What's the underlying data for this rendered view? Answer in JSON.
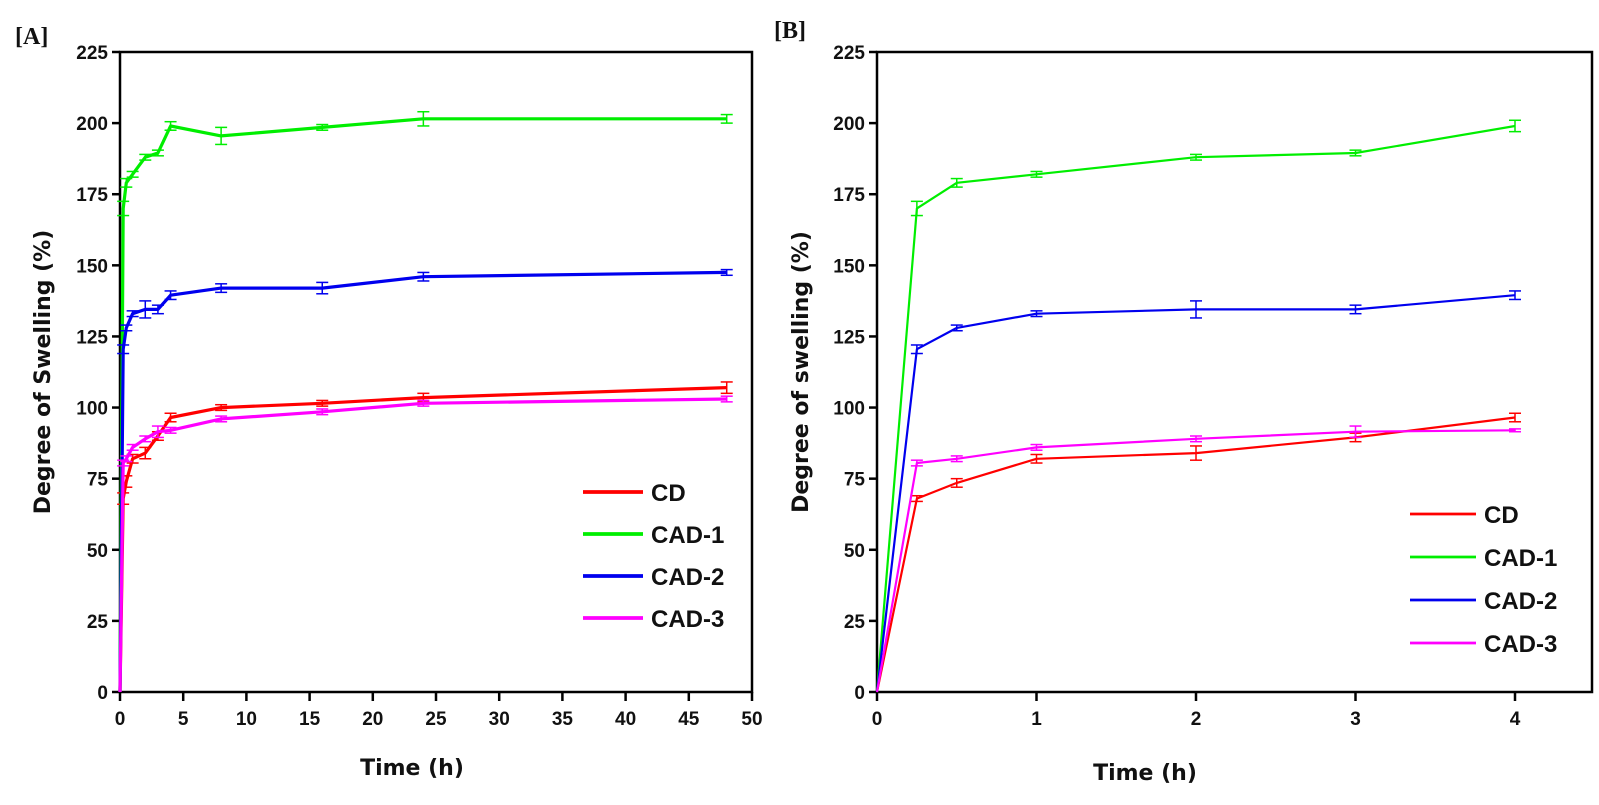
{
  "chart_data": [
    {
      "type": "line",
      "panel_label": "[A]",
      "title": "",
      "xlabel": "Time (h)",
      "ylabel": "Degree of Swelling (%)",
      "xlim": [
        0,
        50
      ],
      "ylim": [
        0,
        225
      ],
      "xticks": [
        0,
        5,
        10,
        15,
        20,
        25,
        30,
        35,
        40,
        45,
        50
      ],
      "yticks": [
        0,
        25,
        50,
        75,
        100,
        125,
        150,
        175,
        200,
        225
      ],
      "grid": false,
      "legend_position": "bottom-right",
      "error_bars": true,
      "series": [
        {
          "name": "CD",
          "color": "#ff0000",
          "x": [
            0,
            0.25,
            0.5,
            1,
            2,
            3,
            4,
            8,
            16,
            24,
            48
          ],
          "y": [
            0,
            68,
            74,
            82,
            84,
            90,
            96.5,
            100,
            101.5,
            103.5,
            107
          ],
          "err": [
            0,
            2,
            2,
            1.5,
            2,
            1.5,
            1.5,
            1,
            1,
            1.5,
            2
          ]
        },
        {
          "name": "CAD-1",
          "color": "#00ee00",
          "x": [
            0,
            0.25,
            0.5,
            1,
            2,
            3,
            4,
            8,
            16,
            24,
            48
          ],
          "y": [
            0,
            170,
            179,
            182,
            188,
            189.5,
            199,
            195.5,
            198.5,
            201.5,
            201.5
          ],
          "err": [
            0,
            2.5,
            1.5,
            1,
            1,
            1,
            1.5,
            3,
            1,
            2.5,
            1.5
          ]
        },
        {
          "name": "CAD-2",
          "color": "#0000ee",
          "x": [
            0,
            0.25,
            0.5,
            1,
            2,
            3,
            4,
            8,
            16,
            24,
            48
          ],
          "y": [
            0,
            120.5,
            128,
            133,
            134.5,
            134.5,
            139.5,
            142,
            142,
            146,
            147.5
          ],
          "err": [
            0,
            1.5,
            1,
            1,
            3,
            1.5,
            1.5,
            1.5,
            2,
            1.5,
            1
          ]
        },
        {
          "name": "CAD-3",
          "color": "#ff00ff",
          "x": [
            0,
            0.25,
            0.5,
            1,
            2,
            3,
            4,
            8,
            16,
            24,
            48
          ],
          "y": [
            0,
            80.5,
            82,
            86,
            89,
            91.5,
            92,
            96,
            98.5,
            101.5,
            103
          ],
          "err": [
            0,
            1,
            1,
            1,
            1,
            2,
            1,
            1,
            1,
            1,
            1
          ]
        }
      ]
    },
    {
      "type": "line",
      "panel_label": "[B]",
      "title": "",
      "xlabel": "Time (h)",
      "ylabel": "Degree of swelling (%)",
      "xlim": [
        0,
        4.5
      ],
      "ylim": [
        0,
        225
      ],
      "xticks": [
        0,
        1,
        2,
        3,
        4
      ],
      "yticks": [
        0,
        25,
        50,
        75,
        100,
        125,
        150,
        175,
        200,
        225
      ],
      "grid": false,
      "legend_position": "bottom-right",
      "error_bars": true,
      "series": [
        {
          "name": "CD",
          "color": "#ff0000",
          "x": [
            0,
            0.25,
            0.5,
            1,
            2,
            3,
            4
          ],
          "y": [
            0,
            68,
            73.5,
            82,
            84,
            89.5,
            96.5
          ],
          "err": [
            0,
            1,
            1.5,
            1.5,
            2.5,
            1.5,
            1.5
          ]
        },
        {
          "name": "CAD-1",
          "color": "#00ee00",
          "x": [
            0,
            0.25,
            0.5,
            1,
            2,
            3,
            4
          ],
          "y": [
            0,
            170,
            179,
            182,
            188,
            189.5,
            199
          ],
          "err": [
            0,
            2.5,
            1.5,
            1,
            1,
            1,
            2
          ]
        },
        {
          "name": "CAD-2",
          "color": "#0000ee",
          "x": [
            0,
            0.25,
            0.5,
            1,
            2,
            3,
            4
          ],
          "y": [
            0,
            120.5,
            128,
            133,
            134.5,
            134.5,
            139.5
          ],
          "err": [
            0,
            1.5,
            1,
            1,
            3,
            1.5,
            1.5
          ]
        },
        {
          "name": "CAD-3",
          "color": "#ff00ff",
          "x": [
            0,
            0.25,
            0.5,
            1,
            2,
            3,
            4
          ],
          "y": [
            0,
            80.5,
            82,
            86,
            89,
            91.5,
            92
          ],
          "err": [
            0,
            1,
            1,
            1,
            1,
            2,
            0.5
          ]
        }
      ]
    }
  ]
}
